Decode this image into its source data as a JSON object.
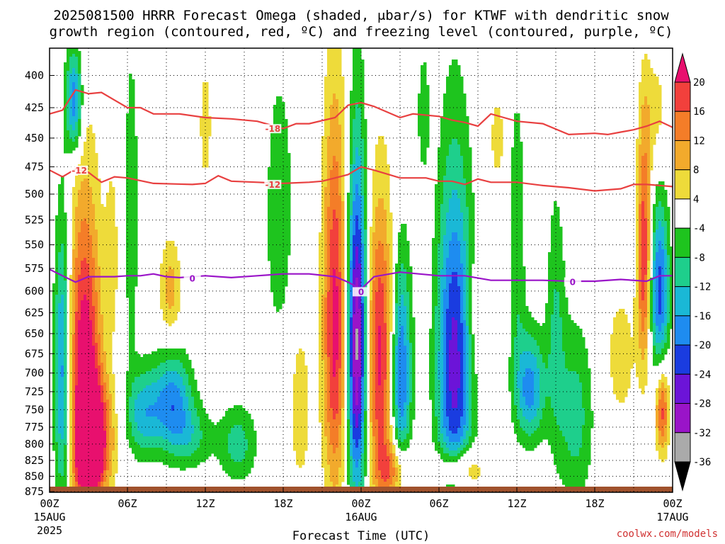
{
  "chart_data": {
    "type": "heatmap",
    "title_lines": [
      "2025081500 HRRR Forecast Omega (shaded, μbar/s) for KTWF with dendritic snow",
      "growth region (contoured, red, ºC) and freezing level (contoured, purple, ºC)"
    ],
    "xlabel": "Forecast Time (UTC)",
    "ylabel": "",
    "credit": "coolwx.com/models",
    "x_range_hours": [
      0,
      48
    ],
    "x_ticks": [
      {
        "hour": 0,
        "label": "00Z",
        "sub": "15AUG",
        "sub2": "2025"
      },
      {
        "hour": 6,
        "label": "06Z",
        "sub": "",
        "sub2": ""
      },
      {
        "hour": 12,
        "label": "12Z",
        "sub": "",
        "sub2": ""
      },
      {
        "hour": 18,
        "label": "18Z",
        "sub": "",
        "sub2": ""
      },
      {
        "hour": 24,
        "label": "00Z",
        "sub": "16AUG",
        "sub2": ""
      },
      {
        "hour": 30,
        "label": "06Z",
        "sub": "",
        "sub2": ""
      },
      {
        "hour": 36,
        "label": "12Z",
        "sub": "",
        "sub2": ""
      },
      {
        "hour": 42,
        "label": "18Z",
        "sub": "",
        "sub2": ""
      },
      {
        "hour": 48,
        "label": "00Z",
        "sub": "17AUG",
        "sub2": ""
      }
    ],
    "y_range_mb": [
      876,
      380
    ],
    "y_ticks": [
      "400",
      "425",
      "450",
      "475",
      "500",
      "525",
      "550",
      "575",
      "600",
      "625",
      "650",
      "675",
      "700",
      "725",
      "750",
      "775",
      "800",
      "825",
      "850",
      "875"
    ],
    "grid": true,
    "colorbar": {
      "labels": [
        "20",
        "16",
        "12",
        "8",
        "4",
        "-4",
        "-8",
        "-12",
        "-16",
        "-20",
        "-24",
        "-28",
        "-32",
        "-36"
      ],
      "colors": [
        "#e8106e",
        "#f2403c",
        "#f47d28",
        "#f2aa2c",
        "#eedb3a",
        "#ffffff",
        "#1ec41e",
        "#1ecf8c",
        "#1ab8d6",
        "#1e8cf0",
        "#1a3ce0",
        "#6c14d8",
        "#9a14c8",
        "#aaaaaa",
        "#000000"
      ]
    },
    "omega_features": [
      {
        "h": 1.0,
        "p": 700,
        "rh": 0.6,
        "rp": 175,
        "v": -20
      },
      {
        "h": 2.7,
        "p": 690,
        "rh": 1.2,
        "rp": 190,
        "v": 24
      },
      {
        "h": 3.6,
        "p": 790,
        "rh": 1.3,
        "rp": 80,
        "v": 20
      },
      {
        "h": 1.9,
        "p": 420,
        "rh": 0.6,
        "rp": 40,
        "v": -20
      },
      {
        "h": 7.2,
        "p": 755,
        "rh": 1.3,
        "rp": 60,
        "v": -14
      },
      {
        "h": 9.5,
        "p": 740,
        "rh": 1.4,
        "rp": 65,
        "v": -18
      },
      {
        "h": 9.3,
        "p": 600,
        "rh": 0.8,
        "rp": 55,
        "v": 10
      },
      {
        "h": 6.3,
        "p": 520,
        "rh": 0.5,
        "rp": 140,
        "v": -8
      },
      {
        "h": 11.0,
        "p": 790,
        "rh": 1.5,
        "rp": 45,
        "v": -8
      },
      {
        "h": 17.7,
        "p": 520,
        "rh": 1.0,
        "rp": 120,
        "v": -8
      },
      {
        "h": 19.3,
        "p": 750,
        "rh": 0.9,
        "rp": 130,
        "v": 6
      },
      {
        "h": 22.0,
        "p": 640,
        "rh": 0.9,
        "rp": 215,
        "v": 22
      },
      {
        "h": 23.7,
        "p": 665,
        "rh": 0.75,
        "rp": 195,
        "v": -36
      },
      {
        "h": 25.5,
        "p": 680,
        "rh": 1.2,
        "rp": 170,
        "v": 22
      },
      {
        "h": 27.0,
        "p": 700,
        "rh": 0.8,
        "rp": 140,
        "v": -24
      },
      {
        "h": 31.2,
        "p": 690,
        "rh": 1.3,
        "rp": 210,
        "v": -26
      },
      {
        "h": 33.0,
        "p": 630,
        "rh": 0.9,
        "rp": 70,
        "v": 6
      },
      {
        "h": 31.5,
        "p": 840,
        "rh": 1.6,
        "rp": 35,
        "v": 16
      },
      {
        "h": 36.0,
        "p": 550,
        "rh": 0.6,
        "rp": 140,
        "v": -8
      },
      {
        "h": 37.0,
        "p": 720,
        "rh": 1.1,
        "rp": 70,
        "v": -18
      },
      {
        "h": 39.0,
        "p": 640,
        "rh": 0.7,
        "rp": 150,
        "v": -8
      },
      {
        "h": 44.0,
        "p": 680,
        "rh": 1.2,
        "rp": 90,
        "v": 6
      },
      {
        "h": 45.8,
        "p": 560,
        "rh": 0.5,
        "rp": 120,
        "v": 20
      },
      {
        "h": 47.0,
        "p": 600,
        "rh": 0.7,
        "rp": 90,
        "v": -22
      },
      {
        "h": 47.2,
        "p": 750,
        "rh": 0.5,
        "rp": 60,
        "v": 18
      },
      {
        "h": 46.7,
        "p": 430,
        "rh": 0.9,
        "rp": 45,
        "v": 6
      },
      {
        "h": 40.5,
        "p": 760,
        "rh": 1.3,
        "rp": 120,
        "v": -10
      },
      {
        "h": 14.5,
        "p": 800,
        "rh": 1.4,
        "rp": 55,
        "v": -10
      },
      {
        "h": 4.8,
        "p": 560,
        "rh": 0.5,
        "rp": 90,
        "v": 6
      },
      {
        "h": 12.0,
        "p": 440,
        "rh": 0.5,
        "rp": 55,
        "v": 6
      },
      {
        "h": 26.5,
        "p": 840,
        "rh": 1.2,
        "rp": 45,
        "v": 14
      },
      {
        "h": 3.0,
        "p": 840,
        "rh": 0.8,
        "rp": 35,
        "v": 18
      },
      {
        "h": 34.5,
        "p": 450,
        "rh": 0.6,
        "rp": 40,
        "v": 6
      },
      {
        "h": 28.8,
        "p": 430,
        "rh": 0.4,
        "rp": 45,
        "v": -8
      }
    ],
    "contours": [
      {
        "name": "-18",
        "color": "#e84040",
        "points": [
          [
            0,
            430
          ],
          [
            1,
            427
          ],
          [
            2,
            411
          ],
          [
            3,
            414
          ],
          [
            4,
            413
          ],
          [
            5,
            419
          ],
          [
            6,
            425
          ],
          [
            7,
            425
          ],
          [
            8,
            430
          ],
          [
            10,
            430
          ],
          [
            12,
            433
          ],
          [
            14,
            434
          ],
          [
            16,
            436
          ],
          [
            18,
            442
          ],
          [
            19,
            438
          ],
          [
            20,
            438
          ],
          [
            22,
            433
          ],
          [
            23,
            423
          ],
          [
            24,
            421
          ],
          [
            25,
            424
          ],
          [
            27,
            433
          ],
          [
            28,
            430
          ],
          [
            30,
            432
          ],
          [
            31,
            435
          ],
          [
            32,
            437
          ],
          [
            33,
            440
          ],
          [
            34,
            430
          ],
          [
            35,
            433
          ],
          [
            36,
            436
          ],
          [
            38,
            438
          ],
          [
            40,
            447
          ],
          [
            42,
            446
          ],
          [
            43,
            447
          ],
          [
            44,
            445
          ],
          [
            45,
            443
          ],
          [
            46,
            440
          ],
          [
            47,
            436
          ],
          [
            48,
            441
          ]
        ]
      },
      {
        "name": "-12",
        "color": "#e84040",
        "points": [
          [
            0,
            478
          ],
          [
            1,
            484
          ],
          [
            2,
            477
          ],
          [
            3,
            480
          ],
          [
            4,
            489
          ],
          [
            5,
            484
          ],
          [
            6,
            485
          ],
          [
            8,
            490
          ],
          [
            11,
            491
          ],
          [
            12,
            490
          ],
          [
            13,
            483
          ],
          [
            14,
            488
          ],
          [
            16,
            489
          ],
          [
            18,
            490
          ],
          [
            20,
            489
          ],
          [
            21,
            488
          ],
          [
            22,
            485
          ],
          [
            23,
            482
          ],
          [
            24,
            475
          ],
          [
            25,
            478
          ],
          [
            27,
            485
          ],
          [
            29,
            485
          ],
          [
            30,
            488
          ],
          [
            31,
            488
          ],
          [
            32,
            491
          ],
          [
            33,
            486
          ],
          [
            34,
            489
          ],
          [
            36,
            489
          ],
          [
            38,
            492
          ],
          [
            40,
            494
          ],
          [
            42,
            497
          ],
          [
            44,
            495
          ],
          [
            45,
            491
          ],
          [
            46,
            491
          ],
          [
            47,
            492
          ],
          [
            48,
            493
          ]
        ]
      },
      {
        "name": "0",
        "color": "#9a14c8",
        "points": [
          [
            0,
            576
          ],
          [
            1,
            583
          ],
          [
            2,
            590
          ],
          [
            3,
            584
          ],
          [
            5,
            584
          ],
          [
            6,
            583
          ],
          [
            7,
            583
          ],
          [
            8,
            581
          ],
          [
            9,
            584
          ],
          [
            10,
            585
          ],
          [
            12,
            583
          ],
          [
            14,
            585
          ],
          [
            16,
            583
          ],
          [
            18,
            581
          ],
          [
            20,
            581
          ],
          [
            22,
            584
          ],
          [
            23,
            590
          ],
          [
            24,
            598
          ],
          [
            25,
            584
          ],
          [
            27,
            579
          ],
          [
            30,
            583
          ],
          [
            32,
            583
          ],
          [
            34,
            588
          ],
          [
            36,
            588
          ],
          [
            38,
            588
          ],
          [
            40,
            589
          ],
          [
            42,
            589
          ],
          [
            44,
            587
          ],
          [
            46,
            589
          ],
          [
            47,
            583
          ],
          [
            48,
            583
          ]
        ]
      }
    ],
    "contour_labels": [
      {
        "text": "-18",
        "h": 17.2,
        "p": 443,
        "color": "#e84040"
      },
      {
        "text": "-12",
        "h": 17.2,
        "p": 492,
        "color": "#e84040"
      },
      {
        "text": "-12",
        "h": 2.3,
        "p": 479,
        "color": "#e84040"
      },
      {
        "text": "0",
        "h": 11.0,
        "p": 587,
        "color": "#9a14c8"
      },
      {
        "text": "0",
        "h": 40.3,
        "p": 591,
        "color": "#9a14c8"
      },
      {
        "text": "0",
        "h": 24.0,
        "p": 602,
        "color": "#9a14c8"
      }
    ]
  }
}
